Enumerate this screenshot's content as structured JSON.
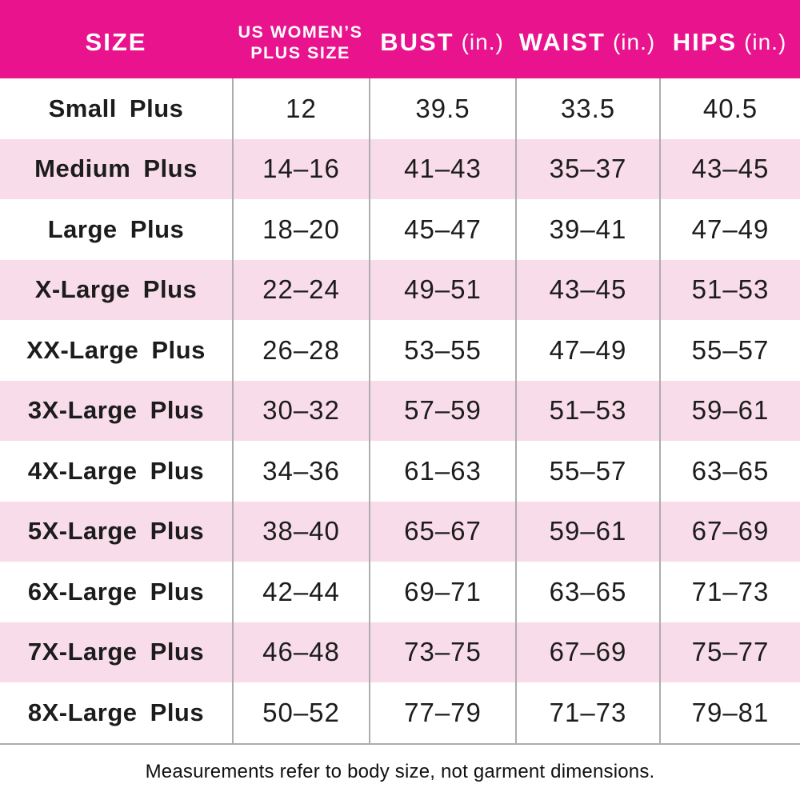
{
  "chart_data": {
    "type": "table",
    "columns": [
      {
        "label": "SIZE"
      },
      {
        "label": "US WOMEN’S",
        "label2": "PLUS SIZE"
      },
      {
        "label": "BUST",
        "unit": "(in.)"
      },
      {
        "label": "WAIST",
        "unit": "(in.)"
      },
      {
        "label": "HIPS",
        "unit": "(in.)"
      }
    ],
    "rows": [
      [
        "Small Plus",
        "12",
        "39.5",
        "33.5",
        "40.5"
      ],
      [
        "Medium Plus",
        "14–16",
        "41–43",
        "35–37",
        "43–45"
      ],
      [
        "Large Plus",
        "18–20",
        "45–47",
        "39–41",
        "47–49"
      ],
      [
        "X-Large Plus",
        "22–24",
        "49–51",
        "43–45",
        "51–53"
      ],
      [
        "XX-Large Plus",
        "26–28",
        "53–55",
        "47–49",
        "55–57"
      ],
      [
        "3X-Large Plus",
        "30–32",
        "57–59",
        "51–53",
        "59–61"
      ],
      [
        "4X-Large Plus",
        "34–36",
        "61–63",
        "55–57",
        "63–65"
      ],
      [
        "5X-Large Plus",
        "38–40",
        "65–67",
        "59–61",
        "67–69"
      ],
      [
        "6X-Large Plus",
        "42–44",
        "69–71",
        "63–65",
        "71–73"
      ],
      [
        "7X-Large Plus",
        "46–48",
        "73–75",
        "67–69",
        "75–77"
      ],
      [
        "8X-Large Plus",
        "50–52",
        "77–79",
        "71–73",
        "79–81"
      ]
    ],
    "note": "Measurements refer to body size, not garment dimensions."
  },
  "colors": {
    "header_bg": "#e8138d",
    "row_alt_bg": "#f9dce9",
    "grid_line": "#adadad",
    "text": "#1c1c1c",
    "header_text": "#ffffff"
  }
}
